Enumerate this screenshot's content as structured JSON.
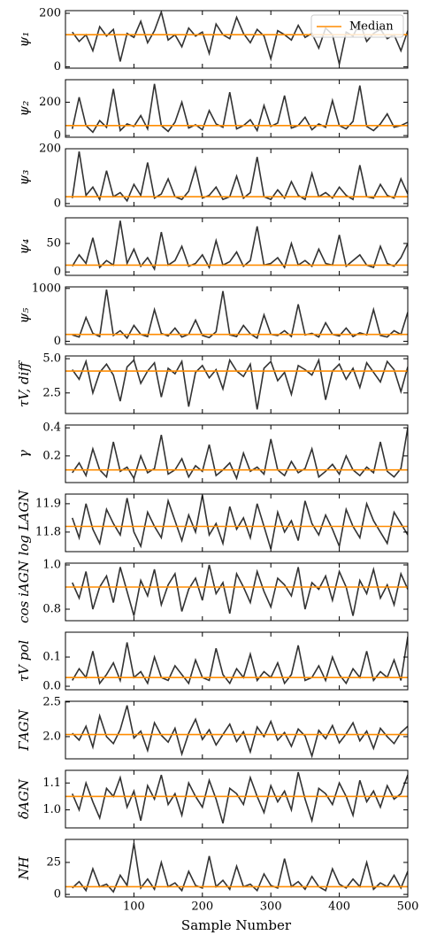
{
  "chart_data": {
    "type": "line",
    "xlabel": "Sample Number",
    "x": [
      10,
      20,
      30,
      40,
      50,
      60,
      70,
      80,
      90,
      100,
      110,
      120,
      130,
      140,
      150,
      160,
      170,
      180,
      190,
      200,
      210,
      220,
      230,
      240,
      250,
      260,
      270,
      280,
      290,
      300,
      310,
      320,
      330,
      340,
      350,
      360,
      370,
      380,
      390,
      400,
      410,
      420,
      430,
      440,
      450,
      460,
      470,
      480,
      490,
      500
    ],
    "xlim": [
      0,
      500
    ],
    "xticks": [
      100,
      200,
      300,
      400,
      500
    ],
    "trace_color": "#333333",
    "median_color": "#ff8c00",
    "legend": {
      "label": "Median",
      "position": "upper right"
    },
    "panels": [
      {
        "ylabel": "ψ₁",
        "ylim": [
          -5,
          210
        ],
        "yticks": [
          0,
          200
        ],
        "median": 120,
        "values": [
          130,
          95,
          120,
          60,
          150,
          115,
          140,
          20,
          125,
          110,
          170,
          90,
          135,
          205,
          100,
          120,
          75,
          145,
          115,
          130,
          50,
          160,
          120,
          105,
          185,
          125,
          90,
          140,
          115,
          30,
          135,
          120,
          100,
          155,
          110,
          125,
          70,
          145,
          120,
          10,
          130,
          115,
          165,
          95,
          125,
          140,
          105,
          120,
          60,
          135
        ]
      },
      {
        "ylabel": "ψ₂",
        "ylim": [
          -10,
          335
        ],
        "yticks": [
          0,
          200
        ],
        "median": 60,
        "values": [
          40,
          230,
          60,
          20,
          90,
          50,
          280,
          30,
          70,
          55,
          120,
          40,
          310,
          60,
          25,
          80,
          200,
          45,
          65,
          35,
          150,
          70,
          50,
          260,
          40,
          60,
          95,
          30,
          180,
          55,
          75,
          240,
          45,
          60,
          110,
          35,
          70,
          50,
          210,
          60,
          40,
          85,
          300,
          55,
          30,
          70,
          130,
          50,
          60,
          80
        ]
      },
      {
        "ylabel": "ψ₃",
        "ylim": [
          -10,
          200
        ],
        "yticks": [
          0,
          200
        ],
        "median": 25,
        "values": [
          20,
          190,
          30,
          60,
          15,
          120,
          25,
          40,
          10,
          70,
          30,
          150,
          20,
          35,
          90,
          25,
          15,
          45,
          130,
          20,
          30,
          60,
          15,
          25,
          100,
          20,
          40,
          170,
          25,
          15,
          50,
          20,
          80,
          30,
          15,
          110,
          25,
          40,
          20,
          60,
          30,
          15,
          140,
          25,
          20,
          70,
          30,
          20,
          90,
          35
        ]
      },
      {
        "ylabel": "ψ₄",
        "ylim": [
          -6,
          95
        ],
        "yticks": [
          0,
          50
        ],
        "median": 12,
        "values": [
          10,
          30,
          15,
          60,
          8,
          20,
          12,
          90,
          15,
          40,
          10,
          25,
          5,
          70,
          12,
          20,
          45,
          10,
          15,
          30,
          8,
          55,
          12,
          18,
          35,
          10,
          20,
          80,
          12,
          15,
          25,
          8,
          50,
          12,
          20,
          10,
          40,
          15,
          12,
          65,
          10,
          20,
          30,
          12,
          8,
          45,
          15,
          10,
          25,
          50
        ]
      },
      {
        "ylabel": "ψ₅",
        "ylim": [
          -60,
          1030
        ],
        "yticks": [
          0,
          1000
        ],
        "median": 130,
        "values": [
          120,
          80,
          450,
          150,
          90,
          980,
          110,
          200,
          60,
          300,
          130,
          90,
          600,
          150,
          100,
          250,
          80,
          130,
          400,
          110,
          70,
          180,
          950,
          120,
          90,
          300,
          140,
          60,
          500,
          130,
          110,
          200,
          90,
          700,
          120,
          150,
          80,
          350,
          130,
          100,
          250,
          90,
          160,
          120,
          600,
          110,
          80,
          200,
          130,
          550
        ]
      },
      {
        "ylabel": "τV, diff",
        "ylim": [
          1.0,
          5.2
        ],
        "yticks": [
          2.5,
          {
            "value": 5,
            "label": "5.0"
          }
        ],
        "median": 4.1,
        "values": [
          4.2,
          3.5,
          4.8,
          2.5,
          4.0,
          4.6,
          3.8,
          1.9,
          4.4,
          4.9,
          3.2,
          4.1,
          4.7,
          2.2,
          4.3,
          3.9,
          4.8,
          1.5,
          4.0,
          4.5,
          3.6,
          4.2,
          2.8,
          4.9,
          4.1,
          3.7,
          4.6,
          1.3,
          4.3,
          4.8,
          3.4,
          4.0,
          2.4,
          4.5,
          4.2,
          3.8,
          4.9,
          2.0,
          4.1,
          4.6,
          3.5,
          4.3,
          2.9,
          4.7,
          4.0,
          3.3,
          4.8,
          4.2,
          2.6,
          4.4
        ]
      },
      {
        "ylabel": "γ",
        "ylim": [
          0.01,
          0.42
        ],
        "yticks": [
          0.2,
          0.4
        ],
        "median": 0.1,
        "values": [
          0.08,
          0.15,
          0.06,
          0.25,
          0.1,
          0.05,
          0.3,
          0.09,
          0.12,
          0.04,
          0.2,
          0.08,
          0.11,
          0.35,
          0.07,
          0.1,
          0.18,
          0.05,
          0.13,
          0.09,
          0.28,
          0.06,
          0.1,
          0.15,
          0.04,
          0.22,
          0.09,
          0.12,
          0.07,
          0.32,
          0.1,
          0.06,
          0.16,
          0.08,
          0.11,
          0.25,
          0.05,
          0.09,
          0.14,
          0.07,
          0.2,
          0.1,
          0.06,
          0.12,
          0.08,
          0.3,
          0.09,
          0.05,
          0.11,
          0.4
        ]
      },
      {
        "ylabel": "log LAGN",
        "ylim": [
          11.731,
          11.934
        ],
        "yticks": [
          11.8,
          11.9
        ],
        "median": 11.82,
        "values": [
          11.85,
          11.78,
          11.9,
          11.81,
          11.76,
          11.88,
          11.83,
          11.79,
          11.92,
          11.8,
          11.75,
          11.87,
          11.82,
          11.78,
          11.91,
          11.84,
          11.77,
          11.86,
          11.8,
          11.93,
          11.79,
          11.83,
          11.76,
          11.89,
          11.81,
          11.85,
          11.78,
          11.9,
          11.82,
          11.74,
          11.87,
          11.8,
          11.84,
          11.77,
          11.91,
          11.83,
          11.79,
          11.86,
          11.81,
          11.75,
          11.88,
          11.82,
          11.78,
          11.9,
          11.84,
          11.8,
          11.76,
          11.87,
          11.83,
          11.79
        ]
      },
      {
        "ylabel": "cos iAGN",
        "ylim": [
          0.748,
          1.008
        ],
        "yticks": [
          0.8,
          {
            "value": 1,
            "label": "1.0"
          }
        ],
        "median": 0.9,
        "values": [
          0.92,
          0.85,
          0.97,
          0.8,
          0.9,
          0.95,
          0.83,
          0.99,
          0.88,
          0.77,
          0.93,
          0.86,
          0.98,
          0.82,
          0.91,
          0.96,
          0.79,
          0.89,
          0.94,
          0.84,
          1.0,
          0.87,
          0.92,
          0.78,
          0.96,
          0.9,
          0.83,
          0.97,
          0.88,
          0.81,
          0.94,
          0.91,
          0.86,
          0.99,
          0.8,
          0.92,
          0.89,
          0.95,
          0.84,
          0.97,
          0.9,
          0.77,
          0.93,
          0.87,
          0.98,
          0.85,
          0.91,
          0.82,
          0.96,
          0.89
        ]
      },
      {
        "ylabel": "τV pol",
        "ylim": [
          -0.012,
          0.185
        ],
        "yticks": [
          {
            "value": 0,
            "label": "0.0"
          },
          0.1
        ],
        "median": 0.03,
        "values": [
          0.02,
          0.06,
          0.03,
          0.12,
          0.01,
          0.04,
          0.08,
          0.02,
          0.15,
          0.03,
          0.05,
          0.01,
          0.1,
          0.03,
          0.02,
          0.07,
          0.04,
          0.01,
          0.09,
          0.03,
          0.02,
          0.13,
          0.04,
          0.01,
          0.06,
          0.03,
          0.11,
          0.02,
          0.05,
          0.03,
          0.08,
          0.01,
          0.04,
          0.14,
          0.02,
          0.03,
          0.07,
          0.02,
          0.1,
          0.04,
          0.01,
          0.06,
          0.03,
          0.12,
          0.02,
          0.05,
          0.03,
          0.09,
          0.02,
          0.17
        ]
      },
      {
        "ylabel": "ΓAGN",
        "ylim": [
          1.68,
          2.51
        ],
        "yticks": [
          {
            "value": 2,
            "label": "2.0"
          },
          2.5
        ],
        "median": 2.03,
        "values": [
          2.05,
          1.95,
          2.15,
          1.85,
          2.3,
          2.0,
          1.9,
          2.1,
          2.45,
          1.98,
          2.08,
          1.8,
          2.2,
          2.02,
          1.92,
          2.12,
          1.75,
          2.05,
          2.25,
          1.96,
          2.1,
          1.88,
          2.03,
          2.18,
          1.93,
          2.07,
          1.78,
          2.14,
          2.0,
          2.22,
          1.95,
          2.06,
          1.86,
          2.11,
          2.01,
          1.72,
          2.09,
          1.97,
          2.16,
          1.91,
          2.04,
          2.2,
          1.94,
          2.08,
          1.83,
          2.12,
          2.0,
          1.9,
          2.06,
          2.15
        ]
      },
      {
        "ylabel": "δAGN",
        "ylim": [
          0.933,
          1.147
        ],
        "yticks": [
          {
            "value": 1,
            "label": "1.0"
          },
          1.1
        ],
        "median": 1.05,
        "values": [
          1.06,
          1.0,
          1.1,
          1.03,
          0.97,
          1.08,
          1.05,
          1.12,
          1.01,
          1.07,
          0.96,
          1.09,
          1.04,
          1.13,
          1.02,
          1.06,
          0.98,
          1.1,
          1.05,
          1.01,
          1.11,
          1.04,
          0.95,
          1.08,
          1.06,
          1.02,
          1.12,
          1.05,
          0.99,
          1.09,
          1.03,
          1.07,
          1.0,
          1.14,
          1.04,
          0.96,
          1.08,
          1.06,
          1.02,
          1.1,
          1.05,
          0.98,
          1.11,
          1.03,
          1.07,
          1.01,
          1.09,
          1.04,
          1.06,
          1.13
        ]
      },
      {
        "ylabel": "NH",
        "ylim": [
          -2,
          43
        ],
        "yticks": [
          0,
          25
        ],
        "median": 6,
        "values": [
          5,
          10,
          3,
          20,
          6,
          8,
          2,
          15,
          7,
          40,
          5,
          12,
          4,
          25,
          6,
          9,
          3,
          18,
          7,
          5,
          30,
          6,
          11,
          4,
          22,
          6,
          8,
          3,
          16,
          7,
          5,
          28,
          6,
          10,
          4,
          14,
          6,
          3,
          20,
          8,
          5,
          12,
          6,
          25,
          4,
          9,
          6,
          15,
          5,
          18
        ]
      }
    ]
  }
}
